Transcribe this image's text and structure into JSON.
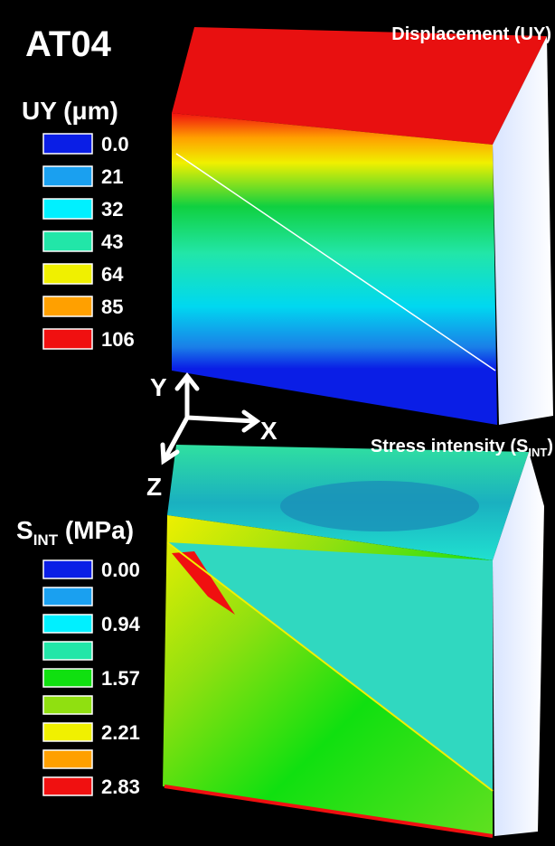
{
  "header": {
    "title": "AT04"
  },
  "panels": [
    {
      "title": "Displacement (UY)",
      "legend": {
        "title": "UY (μm)",
        "items": [
          {
            "label": "0.0",
            "color": "#0a1ee6"
          },
          {
            "label": "21",
            "color": "#1aa0f0"
          },
          {
            "label": "32",
            "color": "#00f0ff"
          },
          {
            "label": "43",
            "color": "#22e6a8"
          },
          {
            "label": "64",
            "color": "#f0f000"
          },
          {
            "label": "85",
            "color": "#ffa000"
          },
          {
            "label": "106",
            "color": "#f01010"
          }
        ]
      }
    },
    {
      "title": {
        "text": "Stress intensity (S",
        "subscript": "INT",
        "suffix": ")"
      },
      "legend": {
        "title": {
          "text": "S",
          "subscript": "INT",
          "suffix": " (MPa)"
        },
        "items": [
          {
            "label": "0.00",
            "color": "#0a1ee6"
          },
          {
            "color": "#1aa0f0"
          },
          {
            "label": "0.94",
            "color": "#00f0ff"
          },
          {
            "color": "#22e6a8"
          },
          {
            "label": "1.57",
            "color": "#10e010"
          },
          {
            "color": "#90e010"
          },
          {
            "label": "2.21",
            "color": "#f0f000"
          },
          {
            "color": "#ffa000"
          },
          {
            "label": "2.83",
            "color": "#f01010"
          }
        ]
      }
    }
  ],
  "axes": {
    "y": "Y",
    "x": "X",
    "z": "Z"
  }
}
